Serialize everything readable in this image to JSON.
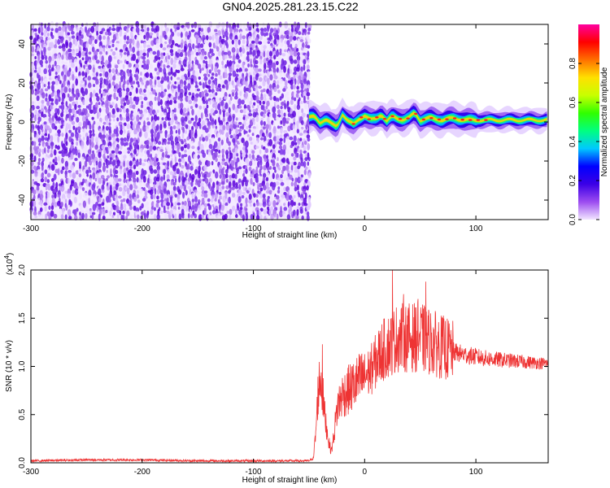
{
  "figure_title": "GN04.2025.281.23.15.C22",
  "chart_data": [
    {
      "type": "heatmap",
      "title": "GN04.2025.281.23.15.C22",
      "xlabel": "Height of straight line (km)",
      "ylabel": "Frequency (Hz)",
      "xlim": [
        -300,
        165
      ],
      "ylim": [
        -50,
        50
      ],
      "xticks": [
        -300,
        -200,
        -100,
        0,
        100
      ],
      "xtick_labels": [
        "-300",
        "-200",
        "-100",
        "0",
        "100"
      ],
      "yticks": [
        -40,
        -20,
        0,
        20,
        40
      ],
      "ytick_labels": [
        "-40",
        "-20",
        "0",
        "20",
        "40"
      ],
      "noise_region_x": [
        -300,
        -50
      ],
      "signal_region_x": [
        -50,
        165
      ],
      "signal_band_center_hz": [
        [
          -50,
          2
        ],
        [
          -45,
          3
        ],
        [
          -40,
          0
        ],
        [
          -35,
          1
        ],
        [
          -30,
          -1
        ],
        [
          -25,
          -2
        ],
        [
          -20,
          4
        ],
        [
          -15,
          0
        ],
        [
          -10,
          -1
        ],
        [
          -5,
          2
        ],
        [
          0,
          3
        ],
        [
          5,
          1
        ],
        [
          10,
          2
        ],
        [
          15,
          4
        ],
        [
          20,
          0
        ],
        [
          25,
          3
        ],
        [
          30,
          2
        ],
        [
          35,
          1
        ],
        [
          40,
          2
        ],
        [
          45,
          5
        ],
        [
          50,
          1
        ],
        [
          60,
          2
        ],
        [
          70,
          1
        ],
        [
          80,
          2
        ],
        [
          90,
          1
        ],
        [
          100,
          1
        ],
        [
          110,
          1
        ],
        [
          120,
          1
        ],
        [
          130,
          1
        ],
        [
          140,
          1
        ],
        [
          150,
          1
        ],
        [
          165,
          1
        ]
      ],
      "colorbar": {
        "label": "Normalized spectral amplitude",
        "range": [
          0,
          1
        ],
        "ticks": [
          0.0,
          0.2,
          0.4,
          0.6,
          0.8
        ],
        "tick_labels": [
          "0.0",
          "0.2",
          "0.4",
          "0.6",
          "0.8"
        ],
        "colors": [
          "#f2e6ff",
          "#9c4cf0",
          "#3b00e6",
          "#0000ff",
          "#00c8ff",
          "#00ff80",
          "#30ff00",
          "#c8ff00",
          "#ffe000",
          "#ff7000",
          "#ff0000",
          "#ff00a0"
        ]
      }
    },
    {
      "type": "line",
      "xlabel": "Height of straight line (km)",
      "ylabel": "SNR (10 * v/v)",
      "y_multiplier_label": "(x10",
      "y_multiplier_exponent": "4",
      "y_multiplier_close": ")",
      "xlim": [
        -300,
        165
      ],
      "ylim": [
        0,
        2.0
      ],
      "xticks": [
        -300,
        -200,
        -100,
        0,
        100
      ],
      "xtick_labels": [
        "-300",
        "-200",
        "-100",
        "0",
        "100"
      ],
      "yticks": [
        0.0,
        0.5,
        1.0,
        1.5,
        2.0
      ],
      "ytick_labels": [
        "0.0",
        "0.5",
        "1.0",
        "1.5",
        "2.0"
      ],
      "series_color": "#ee3333",
      "envelope_points": [
        [
          -300,
          0.02
        ],
        [
          -250,
          0.03
        ],
        [
          -200,
          0.03
        ],
        [
          -150,
          0.02
        ],
        [
          -100,
          0.02
        ],
        [
          -50,
          0.02
        ],
        [
          -46,
          0.05
        ],
        [
          -44,
          0.3
        ],
        [
          -42,
          0.7
        ],
        [
          -40,
          0.9
        ],
        [
          -38,
          0.75
        ],
        [
          -36,
          0.5
        ],
        [
          -34,
          0.35
        ],
        [
          -32,
          0.2
        ],
        [
          -30,
          0.12
        ],
        [
          -28,
          0.25
        ],
        [
          -26,
          0.45
        ],
        [
          -24,
          0.6
        ],
        [
          -20,
          0.7
        ],
        [
          -15,
          0.75
        ],
        [
          -10,
          0.8
        ],
        [
          -5,
          0.85
        ],
        [
          0,
          0.9
        ],
        [
          5,
          0.95
        ],
        [
          10,
          1.05
        ],
        [
          15,
          1.15
        ],
        [
          20,
          1.2
        ],
        [
          25,
          1.25
        ],
        [
          30,
          1.3
        ],
        [
          40,
          1.3
        ],
        [
          50,
          1.3
        ],
        [
          60,
          1.25
        ],
        [
          70,
          1.2
        ],
        [
          80,
          1.15
        ],
        [
          90,
          1.12
        ],
        [
          100,
          1.1
        ],
        [
          110,
          1.08
        ],
        [
          120,
          1.07
        ],
        [
          130,
          1.06
        ],
        [
          140,
          1.05
        ],
        [
          150,
          1.04
        ],
        [
          165,
          1.03
        ]
      ],
      "peaks": [
        [
          -38,
          1.23
        ],
        [
          25,
          2.0
        ],
        [
          35,
          1.75
        ],
        [
          55,
          1.88
        ],
        [
          48,
          1.7
        ]
      ]
    }
  ]
}
